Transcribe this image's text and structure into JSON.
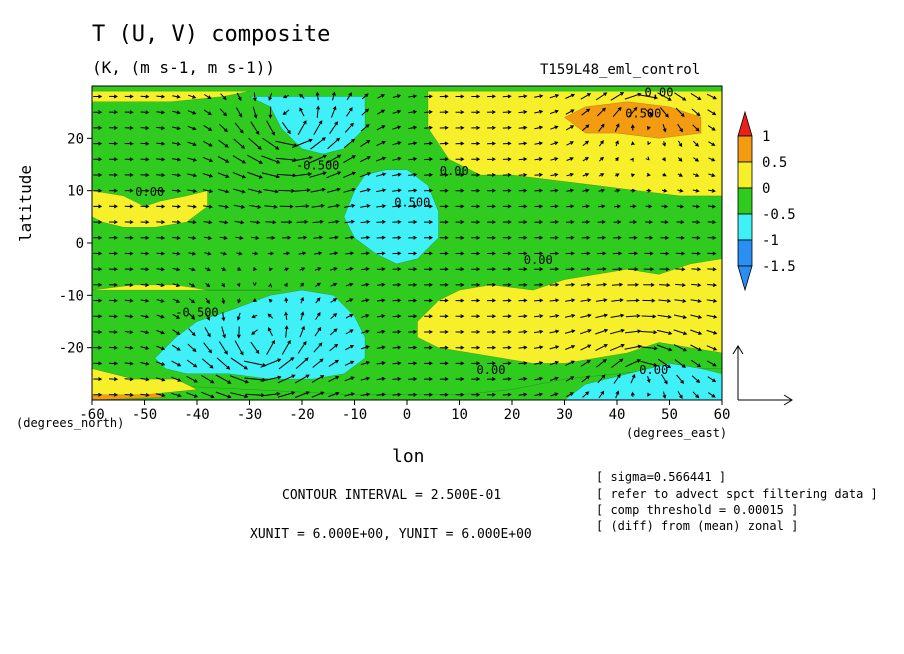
{
  "title": "T (U, V) composite",
  "subtitle": "(K, (m s-1, m s-1))",
  "run_name": "T159L48_eml_control",
  "xlabel": "lon",
  "ylabel": "latitude",
  "x_unit_label": "(degrees_east)",
  "y_unit_label": "(degrees_north)",
  "contour_interval": "CONTOUR INTERVAL = 2.500E-01",
  "vector_units": "XUNIT = 6.000E+00, YUNIT = 6.000E+00",
  "notes": [
    "[ sigma=0.566441 ]",
    "[ refer to advect spct filtering data ]",
    "[ comp threshold = 0.00015 ]",
    "[ (diff) from (mean) zonal ]"
  ],
  "colors": {
    "red": "#e8221b",
    "orange": "#f39c12",
    "yellow": "#f7ef2a",
    "green": "#2fcc1f",
    "cyan": "#3ff0f7",
    "blue": "#2a8ff2",
    "frame": "#000000"
  },
  "chart_data": {
    "type": "heatmap",
    "overlay": "vector field (U, V)",
    "title": "T (U, V) composite",
    "xlabel": "lon",
    "ylabel": "latitude",
    "xlim": [
      -60,
      60
    ],
    "ylim": [
      -30,
      30
    ],
    "x_ticks": [
      -60,
      -50,
      -40,
      -30,
      -20,
      -10,
      0,
      10,
      20,
      30,
      40,
      50,
      60
    ],
    "y_ticks": [
      -20,
      -10,
      0,
      10,
      20
    ],
    "x_tick_labels": [
      "-60",
      "-50",
      "-40",
      "-30",
      "-20",
      "-10",
      "0",
      "10",
      "20",
      "30",
      "40",
      "50",
      "60"
    ],
    "y_tick_labels": [
      "-20",
      "-10",
      "0",
      "10",
      "20"
    ],
    "colorbar": {
      "levels": [
        1,
        0.5,
        0,
        -0.5,
        -1,
        -1.5
      ],
      "labels": [
        "1",
        "0.5",
        "0",
        "-0.5",
        "-1",
        "-1.5"
      ],
      "bins": [
        {
          "range": [
            0.5,
            1.0
          ],
          "color": "#f39c12"
        },
        {
          "range": [
            0.0,
            0.5
          ],
          "color": "#f7ef2a"
        },
        {
          "range": [
            -0.5,
            0.0
          ],
          "color": "#2fcc1f"
        },
        {
          "range": [
            -1.0,
            -0.5
          ],
          "color": "#3ff0f7"
        },
        {
          "range": [
            -1.5,
            -1.0
          ],
          "color": "#2a8ff2"
        }
      ]
    },
    "regions": [
      {
        "value": 0.3,
        "polygon": [
          [
            -60,
            27
          ],
          [
            -45,
            27
          ],
          [
            -35,
            28
          ],
          [
            -30,
            29
          ],
          [
            -60,
            29
          ]
        ]
      },
      {
        "value": 0.3,
        "polygon": [
          [
            -60,
            10
          ],
          [
            -54,
            9
          ],
          [
            -50,
            7
          ],
          [
            -47,
            8
          ],
          [
            -42,
            9
          ],
          [
            -38,
            10
          ],
          [
            -38,
            7
          ],
          [
            -42,
            4
          ],
          [
            -48,
            3
          ],
          [
            -54,
            3
          ],
          [
            -58,
            4
          ],
          [
            -60,
            5
          ]
        ]
      },
      {
        "value": 0.25,
        "polygon": [
          [
            -60,
            -9
          ],
          [
            -52,
            -8
          ],
          [
            -44,
            -8
          ],
          [
            -38,
            -9
          ],
          [
            -30,
            -9
          ],
          [
            -24,
            -9
          ],
          [
            -60,
            -9
          ]
        ]
      },
      {
        "value": 0.35,
        "polygon": [
          [
            4,
            29
          ],
          [
            4,
            22
          ],
          [
            8,
            16
          ],
          [
            14,
            13
          ],
          [
            20,
            13
          ],
          [
            28,
            12
          ],
          [
            36,
            11
          ],
          [
            44,
            10
          ],
          [
            52,
            9
          ],
          [
            60,
            9
          ],
          [
            60,
            29
          ]
        ]
      },
      {
        "value": 0.3,
        "polygon": [
          [
            2,
            -15
          ],
          [
            6,
            -11
          ],
          [
            10,
            -9
          ],
          [
            16,
            -8
          ],
          [
            24,
            -9
          ],
          [
            30,
            -7
          ],
          [
            36,
            -6
          ],
          [
            42,
            -5
          ],
          [
            48,
            -6
          ],
          [
            54,
            -4
          ],
          [
            60,
            -3
          ],
          [
            60,
            -21
          ],
          [
            54,
            -20
          ],
          [
            48,
            -19
          ],
          [
            42,
            -21
          ],
          [
            36,
            -22
          ],
          [
            30,
            -23
          ],
          [
            24,
            -23
          ],
          [
            18,
            -22
          ],
          [
            12,
            -21
          ],
          [
            6,
            -20
          ],
          [
            2,
            -18
          ]
        ]
      },
      {
        "value": -0.25,
        "polygon": [
          [
            -60,
            -27
          ],
          [
            -50,
            -27
          ],
          [
            -40,
            -27.5
          ],
          [
            -30,
            -28
          ],
          [
            -20,
            -28.5
          ],
          [
            -10,
            -29
          ],
          [
            0,
            -29
          ],
          [
            10,
            -29
          ],
          [
            20,
            -28
          ],
          [
            30,
            -26
          ],
          [
            40,
            -25
          ],
          [
            50,
            -24
          ],
          [
            60,
            -24
          ],
          [
            60,
            -30
          ],
          [
            -60,
            -30
          ]
        ]
      },
      {
        "value": 0.6,
        "polygon": [
          [
            -60,
            -28
          ],
          [
            -50,
            -28
          ],
          [
            -46,
            -29.5
          ],
          [
            -60,
            -30
          ]
        ]
      },
      {
        "value": 0.3,
        "polygon": [
          [
            -60,
            -24
          ],
          [
            -52,
            -26
          ],
          [
            -44,
            -26
          ],
          [
            -40,
            -28
          ],
          [
            -50,
            -29
          ],
          [
            -60,
            -29
          ]
        ]
      },
      {
        "value": -0.7,
        "polygon": [
          [
            -30,
            28
          ],
          [
            -26,
            26
          ],
          [
            -24,
            22
          ],
          [
            -20,
            18
          ],
          [
            -16,
            17
          ],
          [
            -12,
            18
          ],
          [
            -8,
            22
          ],
          [
            -8,
            28
          ]
        ]
      },
      {
        "value": -0.7,
        "polygon": [
          [
            -8,
            13
          ],
          [
            -4,
            14
          ],
          [
            0,
            14
          ],
          [
            4,
            11
          ],
          [
            6,
            6
          ],
          [
            6,
            1
          ],
          [
            2,
            -3
          ],
          [
            -2,
            -4
          ],
          [
            -6,
            -2
          ],
          [
            -10,
            1
          ],
          [
            -12,
            5
          ],
          [
            -10,
            10
          ]
        ]
      },
      {
        "value": -0.7,
        "polygon": [
          [
            -48,
            -22
          ],
          [
            -44,
            -18
          ],
          [
            -40,
            -15
          ],
          [
            -34,
            -13
          ],
          [
            -26,
            -10
          ],
          [
            -20,
            -9
          ],
          [
            -14,
            -10
          ],
          [
            -10,
            -14
          ],
          [
            -8,
            -18
          ],
          [
            -8,
            -22
          ],
          [
            -12,
            -25
          ],
          [
            -18,
            -26
          ],
          [
            -26,
            -26
          ],
          [
            -34,
            -25
          ],
          [
            -42,
            -25
          ],
          [
            -46,
            -24
          ]
        ]
      },
      {
        "value": 0.7,
        "polygon": [
          [
            30,
            24
          ],
          [
            34,
            26
          ],
          [
            42,
            27
          ],
          [
            50,
            26
          ],
          [
            56,
            24
          ],
          [
            56,
            21
          ],
          [
            48,
            20
          ],
          [
            40,
            21
          ],
          [
            34,
            21
          ]
        ]
      },
      {
        "value": -0.7,
        "polygon": [
          [
            30,
            -30
          ],
          [
            34,
            -27
          ],
          [
            42,
            -25
          ],
          [
            50,
            -23
          ],
          [
            56,
            -24
          ],
          [
            60,
            -25
          ],
          [
            60,
            -30
          ]
        ]
      }
    ],
    "contour_labels": [
      {
        "text": "0.00",
        "x": -49,
        "y": 9
      },
      {
        "text": "-0.500",
        "x": -17,
        "y": 14
      },
      {
        "text": "0.500",
        "x": 1,
        "y": 7
      },
      {
        "text": "0.00",
        "x": 9,
        "y": 13
      },
      {
        "text": "0.00",
        "x": 25,
        "y": -4
      },
      {
        "text": "0.00",
        "x": 48,
        "y": 28
      },
      {
        "text": "0.500",
        "x": 45,
        "y": 24
      },
      {
        "text": "-0.500",
        "x": -40,
        "y": -14
      },
      {
        "text": "0.00",
        "x": 47,
        "y": -25
      },
      {
        "text": "0.00",
        "x": 16,
        "y": -25
      }
    ],
    "wind_vectors": {
      "grid_spacing_deg": 3,
      "reference_vector": {
        "u": 6.0,
        "v": 6.0
      },
      "flow_pattern": [
        {
          "type": "background_westerly",
          "u": 3,
          "v": 0
        },
        {
          "type": "cyclone",
          "center": [
            -22,
            22
          ],
          "strength": 6
        },
        {
          "type": "cyclone",
          "center": [
            -28,
            -20
          ],
          "strength": 6
        },
        {
          "type": "anticyclone",
          "center": [
            45,
            25
          ],
          "strength": 4
        },
        {
          "type": "anticyclone",
          "center": [
            45,
            -25
          ],
          "strength": 4
        }
      ]
    }
  }
}
